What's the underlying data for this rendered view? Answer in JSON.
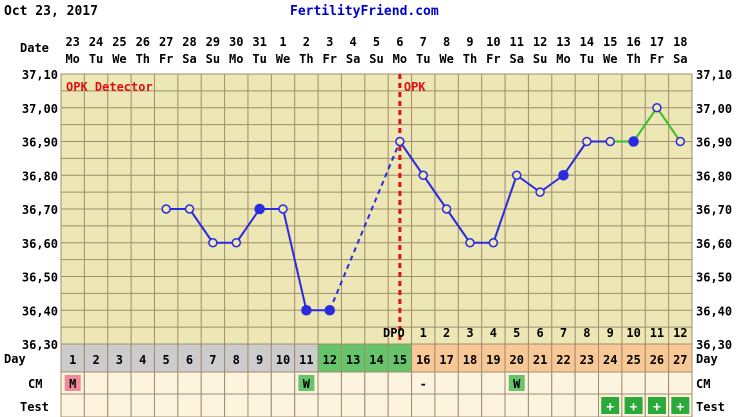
{
  "header": {
    "date": "Oct 23, 2017",
    "site": "FertilityFriend.com"
  },
  "colors": {
    "grid_bg": "#ece7b4",
    "grid_line": "#a08c6e",
    "temp_line": "#2a2ae0",
    "temp_line_post": "#3cbf2a",
    "opk_line": "#e01010",
    "cd_gray": "#cccccc",
    "cd_green": "#66c46a",
    "cd_orange": "#f8c996",
    "cm_bg": "#fcf4df",
    "cm_m": "#f08898",
    "cm_w": "#66c46a",
    "test_plus": "#2aaa3a"
  },
  "chart_data": {
    "type": "line",
    "ylim": [
      36.3,
      37.1
    ],
    "yticks": [
      "36,30",
      "36,40",
      "36,50",
      "36,60",
      "36,70",
      "36,80",
      "36,90",
      "37,00",
      "37,10"
    ],
    "row_labels": {
      "date": "Date",
      "day": "Day",
      "cm": "CM",
      "test": "Test",
      "dpo": "DPO"
    },
    "dates": [
      "23",
      "24",
      "25",
      "26",
      "27",
      "28",
      "29",
      "30",
      "31",
      "1",
      "2",
      "3",
      "4",
      "5",
      "6",
      "7",
      "8",
      "9",
      "10",
      "11",
      "12",
      "13",
      "14",
      "15",
      "16",
      "17",
      "18"
    ],
    "weekdays": [
      "Mo",
      "Tu",
      "We",
      "Th",
      "Fr",
      "Sa",
      "Su",
      "Mo",
      "Tu",
      "We",
      "Th",
      "Fr",
      "Sa",
      "Su",
      "Mo",
      "Tu",
      "We",
      "Th",
      "Fr",
      "Sa",
      "Su",
      "Mo",
      "Tu",
      "We",
      "Th",
      "Fr",
      "Sa"
    ],
    "cycle_days": [
      "1",
      "2",
      "3",
      "4",
      "5",
      "6",
      "7",
      "8",
      "9",
      "10",
      "11",
      "12",
      "13",
      "14",
      "15",
      "16",
      "17",
      "18",
      "19",
      "20",
      "21",
      "22",
      "23",
      "24",
      "25",
      "26",
      "27"
    ],
    "cycle_day_colors": [
      "gray",
      "gray",
      "gray",
      "gray",
      "gray",
      "gray",
      "gray",
      "gray",
      "gray",
      "gray",
      "gray",
      "green",
      "green",
      "green",
      "green",
      "orange",
      "orange",
      "orange",
      "orange",
      "orange",
      "orange",
      "orange",
      "orange",
      "orange",
      "orange",
      "orange",
      "orange"
    ],
    "dpo": [
      "",
      "",
      "",
      "",
      "",
      "",
      "",
      "",
      "",
      "",
      "",
      "",
      "",
      "",
      "",
      "1",
      "2",
      "3",
      "4",
      "5",
      "6",
      "7",
      "8",
      "9",
      "10",
      "11",
      "12"
    ],
    "cm": [
      "M",
      "",
      "",
      "",
      "",
      "",
      "",
      "",
      "",
      "",
      "W",
      "",
      "",
      "",
      "",
      "-",
      "",
      "",
      "",
      "W",
      "",
      "",
      "",
      "",
      "",
      "",
      ""
    ],
    "test": [
      "",
      "",
      "",
      "",
      "",
      "",
      "",
      "",
      "",
      "",
      "",
      "",
      "",
      "",
      "",
      "",
      "",
      "",
      "",
      "",
      "",
      "",
      "",
      "+",
      "+",
      "+",
      "+"
    ],
    "temps": [
      null,
      null,
      null,
      null,
      36.7,
      36.7,
      36.6,
      36.6,
      36.7,
      36.7,
      36.4,
      36.4,
      null,
      null,
      36.9,
      36.8,
      36.7,
      36.6,
      36.6,
      36.8,
      36.75,
      36.8,
      36.9,
      36.9,
      36.9,
      37.0,
      36.9
    ],
    "filled": [
      false,
      false,
      false,
      false,
      false,
      false,
      false,
      false,
      true,
      false,
      true,
      true,
      false,
      false,
      false,
      false,
      false,
      false,
      false,
      false,
      false,
      true,
      false,
      false,
      true,
      false,
      false
    ],
    "green_from_index": 23,
    "ovulation_index": 14,
    "annotations": {
      "opk_detector": "OPK Detector",
      "opk": "OPK"
    }
  }
}
